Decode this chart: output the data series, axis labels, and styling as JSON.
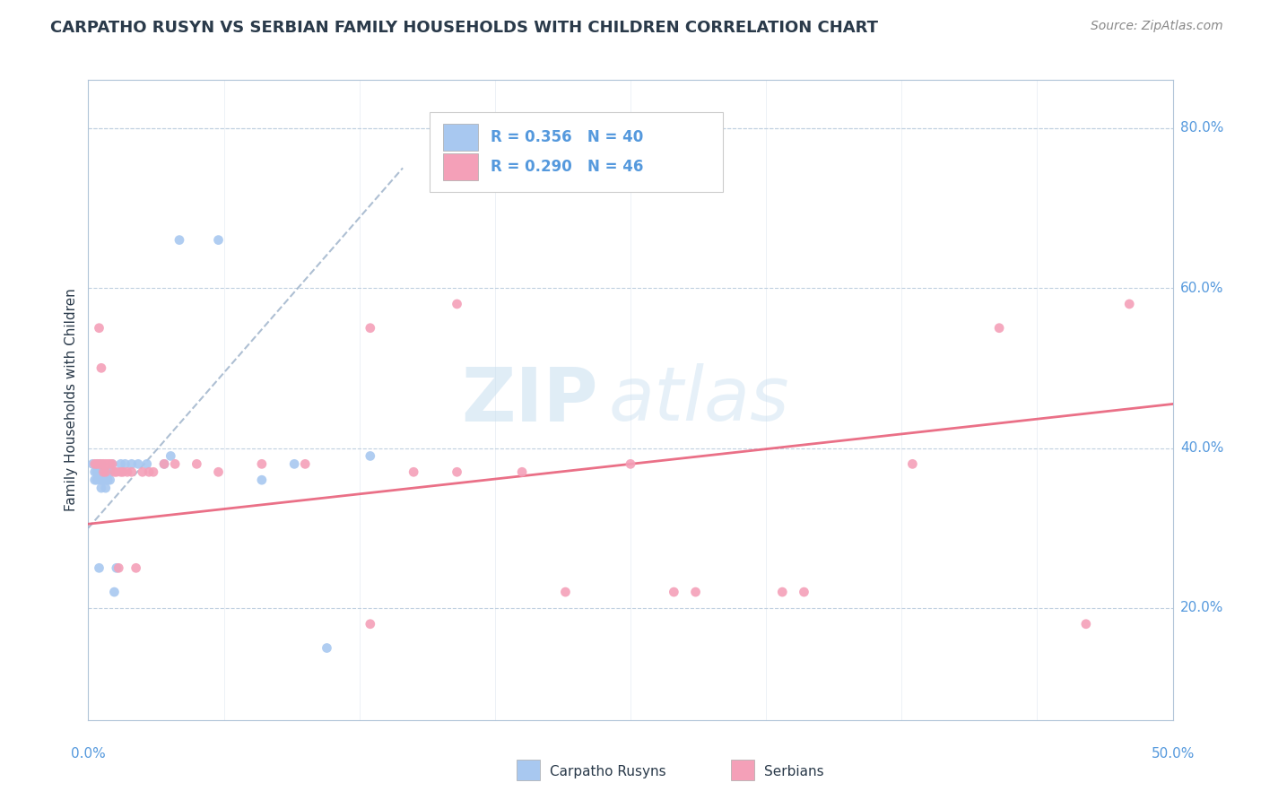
{
  "title": "CARPATHO RUSYN VS SERBIAN FAMILY HOUSEHOLDS WITH CHILDREN CORRELATION CHART",
  "source_text": "Source: ZipAtlas.com",
  "ylabel": "Family Households with Children",
  "legend_label_carpatho": "Carpatho Rusyns",
  "legend_label_serbian": "Serbians",
  "watermark_zip": "ZIP",
  "watermark_atlas": "atlas",
  "carpatho_color": "#a8c8f0",
  "serbian_color": "#f4a0b8",
  "carpatho_line_color": "#5588cc",
  "serbian_line_color": "#e8607a",
  "background_color": "#ffffff",
  "grid_color": "#c0d0e0",
  "title_color": "#2a3a4a",
  "axis_label_color": "#5599dd",
  "right_label_color": "#5599dd",
  "xlim": [
    0.0,
    0.5
  ],
  "ylim": [
    0.06,
    0.86
  ],
  "carpatho_points_x": [
    0.002,
    0.003,
    0.003,
    0.004,
    0.004,
    0.004,
    0.005,
    0.005,
    0.005,
    0.006,
    0.006,
    0.006,
    0.006,
    0.007,
    0.007,
    0.007,
    0.007,
    0.008,
    0.008,
    0.008,
    0.009,
    0.009,
    0.01,
    0.01,
    0.011,
    0.012,
    0.013,
    0.015,
    0.017,
    0.02,
    0.023,
    0.027,
    0.035,
    0.038,
    0.042,
    0.06,
    0.08,
    0.095,
    0.11,
    0.13
  ],
  "carpatho_points_y": [
    0.38,
    0.36,
    0.37,
    0.38,
    0.36,
    0.37,
    0.25,
    0.38,
    0.37,
    0.36,
    0.37,
    0.35,
    0.38,
    0.37,
    0.36,
    0.37,
    0.36,
    0.37,
    0.36,
    0.35,
    0.37,
    0.36,
    0.37,
    0.36,
    0.38,
    0.22,
    0.25,
    0.38,
    0.38,
    0.38,
    0.38,
    0.38,
    0.38,
    0.39,
    0.66,
    0.66,
    0.36,
    0.38,
    0.15,
    0.39
  ],
  "serbian_points_x": [
    0.003,
    0.004,
    0.005,
    0.005,
    0.006,
    0.006,
    0.007,
    0.007,
    0.008,
    0.008,
    0.009,
    0.01,
    0.011,
    0.012,
    0.013,
    0.014,
    0.015,
    0.016,
    0.018,
    0.02,
    0.022,
    0.025,
    0.028,
    0.03,
    0.035,
    0.04,
    0.05,
    0.06,
    0.08,
    0.1,
    0.13,
    0.15,
    0.17,
    0.2,
    0.25,
    0.28,
    0.32,
    0.38,
    0.42,
    0.46,
    0.13,
    0.17,
    0.22,
    0.27,
    0.33,
    0.48
  ],
  "serbian_points_y": [
    0.38,
    0.38,
    0.55,
    0.38,
    0.38,
    0.5,
    0.38,
    0.37,
    0.38,
    0.37,
    0.38,
    0.38,
    0.38,
    0.37,
    0.37,
    0.25,
    0.37,
    0.37,
    0.37,
    0.37,
    0.25,
    0.37,
    0.37,
    0.37,
    0.38,
    0.38,
    0.38,
    0.37,
    0.38,
    0.38,
    0.55,
    0.37,
    0.37,
    0.37,
    0.38,
    0.22,
    0.22,
    0.38,
    0.55,
    0.18,
    0.18,
    0.58,
    0.22,
    0.22,
    0.22,
    0.58
  ],
  "carpatho_trend_x": [
    0.0,
    0.145
  ],
  "carpatho_trend_y": [
    0.3,
    0.75
  ],
  "serbian_trend_x": [
    0.0,
    0.5
  ],
  "serbian_trend_y": [
    0.305,
    0.455
  ],
  "right_ytick_vals": [
    0.2,
    0.4,
    0.6,
    0.8
  ],
  "right_ytick_labels": [
    "20.0%",
    "40.0%",
    "60.0%",
    "80.0%"
  ]
}
